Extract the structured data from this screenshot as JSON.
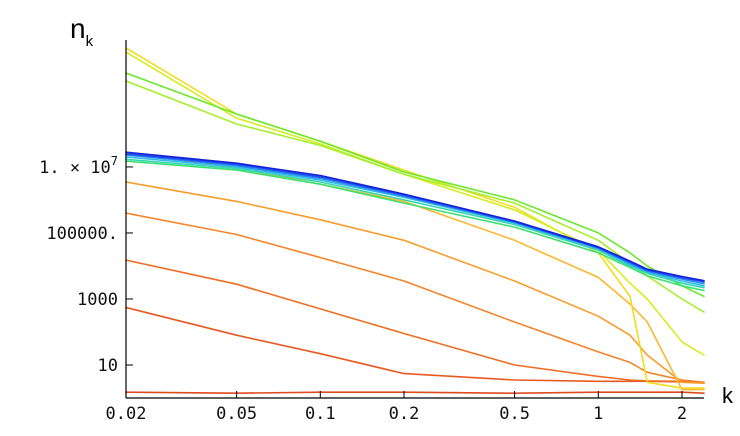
{
  "chart_data": {
    "type": "line",
    "title": "",
    "ylabel": "n",
    "ylabel_subscript": "k",
    "xlabel": "k",
    "x_scale": "log",
    "y_scale": "log",
    "xlim": [
      0.02,
      2.4
    ],
    "ylim": [
      1,
      70000000000
    ],
    "x_ticks": [
      {
        "value": 0.02,
        "label": "0.02"
      },
      {
        "value": 0.05,
        "label": "0.05"
      },
      {
        "value": 0.1,
        "label": "0.1"
      },
      {
        "value": 0.2,
        "label": "0.2"
      },
      {
        "value": 0.5,
        "label": "0.5"
      },
      {
        "value": 1,
        "label": "1"
      },
      {
        "value": 2,
        "label": "2"
      }
    ],
    "y_ticks": [
      {
        "value": 10,
        "label": "10"
      },
      {
        "value": 1000,
        "label": "1000"
      },
      {
        "value": 100000,
        "label": "100000."
      },
      {
        "value": 10000000,
        "label_mantissa": "1. × 10",
        "label_exponent": "7"
      }
    ],
    "grid": false,
    "legend": "none",
    "x": [
      0.02,
      0.05,
      0.1,
      0.2,
      0.5,
      1,
      1.3,
      1.5,
      2,
      2.4
    ],
    "series": [
      {
        "color": "#e04a1f",
        "values": [
          1.5,
          1.4,
          1.5,
          1.5,
          1.4,
          1.5,
          1.5,
          1.5,
          1.5,
          1.4
        ]
      },
      {
        "color": "#e85a22",
        "values": [
          550,
          80,
          22,
          5.5,
          3.5,
          3.2,
          3.2,
          3.2,
          3.1,
          3.0
        ]
      },
      {
        "color": "#ee6e24",
        "values": [
          15000,
          2800,
          500,
          90,
          10,
          4.5,
          3.5,
          3.3,
          3.2,
          3.0
        ]
      },
      {
        "color": "#f4842a",
        "values": [
          400000,
          90000,
          18000,
          3500,
          200,
          25,
          12,
          6,
          3.5,
          3.0
        ]
      },
      {
        "color": "#f89c2c",
        "values": [
          3500000,
          900000,
          250000,
          60000,
          3500,
          300,
          80,
          20,
          3.0,
          2.8
        ]
      },
      {
        "color": "#fbb82e",
        "values": [
          28000000,
          9000000,
          3000000,
          900000,
          60000,
          4500,
          700,
          200,
          1.8,
          1.8
        ]
      },
      {
        "color": "#f3dc1e",
        "values": [
          40000000000,
          400000000,
          60000000,
          8000000,
          600000,
          25000,
          1200,
          3,
          2,
          2
        ]
      },
      {
        "color": "#d4ee20",
        "values": [
          30000000000,
          300000000,
          50000000,
          6000000,
          500000,
          30000,
          3000,
          1000,
          50,
          20
        ]
      },
      {
        "color": "#a4f02a",
        "values": [
          4000000000,
          200000000,
          45000000,
          6000000,
          800000,
          60000,
          12000,
          5000,
          1000,
          400
        ]
      },
      {
        "color": "#6ce82e",
        "values": [
          7000000000,
          400000000,
          60000000,
          7000000,
          1000000,
          100000,
          25000,
          10000,
          2500,
          1200
        ]
      },
      {
        "color": "#3ee070",
        "values": [
          15000000,
          8000000,
          3000000,
          800000,
          150000,
          25000,
          9000,
          5000,
          2500,
          1800
        ]
      },
      {
        "color": "#34d6b4",
        "values": [
          17000000,
          9000000,
          3500000,
          1000000,
          180000,
          30000,
          10000,
          6000,
          3000,
          2200
        ]
      },
      {
        "color": "#30bce6",
        "values": [
          20000000,
          10000000,
          4000000,
          1200000,
          200000,
          33000,
          11000,
          6500,
          3500,
          2500
        ]
      },
      {
        "color": "#2a86f0",
        "values": [
          23000000,
          11000000,
          4500000,
          1300000,
          210000,
          35000,
          12000,
          7000,
          4000,
          2900
        ]
      },
      {
        "color": "#1c4cf0",
        "values": [
          25000000,
          12000000,
          5000000,
          1400000,
          220000,
          36000,
          13000,
          7500,
          4400,
          3300
        ]
      },
      {
        "color": "#1424d8",
        "values": [
          28000000,
          13000000,
          5500000,
          1500000,
          230000,
          38000,
          14000,
          8000,
          4800,
          3600
        ]
      }
    ]
  }
}
